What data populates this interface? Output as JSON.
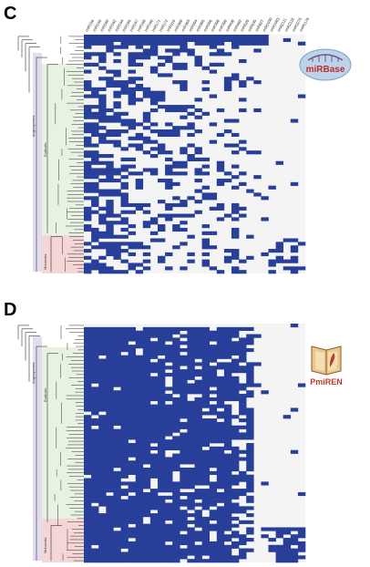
{
  "panels": [
    {
      "id": "C",
      "letter": "C",
      "column_labels": [
        "miR156",
        "miR159",
        "miR160",
        "miR162",
        "miR164",
        "miR166",
        "miR167",
        "miR168",
        "miR169",
        "miR171",
        "miR172",
        "miR319",
        "miR390",
        "miR393",
        "miR394",
        "miR395",
        "miR396",
        "miR398",
        "miR399",
        "miR408",
        "miR482",
        "miR529",
        "miR535",
        "miR827",
        "miR1030",
        "miR1083",
        "miR2111",
        "miR2118",
        "miR2275",
        "miR5179"
      ],
      "clade_labels": {
        "angiosperms": "Angiosperms",
        "eudicots": "Eudicots",
        "monocots": "Monocots"
      },
      "logo": {
        "name": "miRBase",
        "text": "miRBase"
      },
      "rows": 68,
      "cols": 30,
      "fill_color": "#283f9a",
      "blank_color": "#f4f4f4"
    },
    {
      "id": "D",
      "letter": "D",
      "clade_labels": {
        "angiosperms": "Angiosperms",
        "eudicots": "Eudicots",
        "monocots": "Monocots"
      },
      "logo": {
        "name": "PmiREN",
        "text": "PmiREN"
      },
      "rows": 68,
      "cols": 30,
      "fill_color": "#283f9a",
      "blank_color": "#f4f4f4"
    }
  ]
}
